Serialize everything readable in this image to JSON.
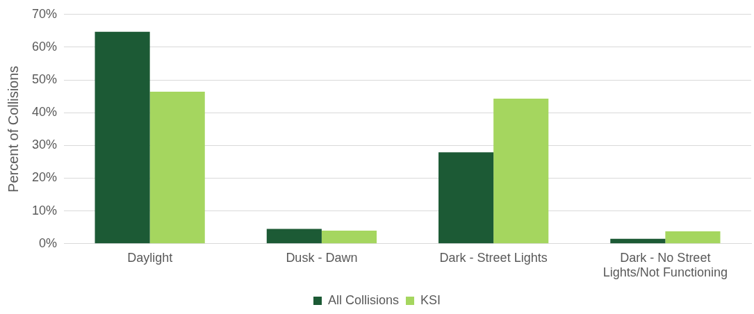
{
  "chart_data": {
    "type": "bar",
    "ylabel": "Percent of Collisions",
    "categories": [
      "Daylight",
      "Dusk - Dawn",
      "Dark - Street Lights",
      "Dark - No Street Lights/Not Functioning"
    ],
    "series": [
      {
        "name": "All Collisions",
        "color": "#1c5a35",
        "values": [
          64.7,
          4.5,
          27.9,
          1.5
        ]
      },
      {
        "name": "KSI",
        "color": "#a5d65f",
        "values": [
          46.4,
          4.0,
          44.3,
          3.8
        ]
      }
    ],
    "ylim": [
      0,
      70
    ],
    "yticks": [
      {
        "value": 0,
        "label": "0%"
      },
      {
        "value": 10,
        "label": "10%"
      },
      {
        "value": 20,
        "label": "20%"
      },
      {
        "value": 30,
        "label": "30%"
      },
      {
        "value": 40,
        "label": "40%"
      },
      {
        "value": 50,
        "label": "50%"
      },
      {
        "value": 60,
        "label": "60%"
      },
      {
        "value": 70,
        "label": "70%"
      }
    ],
    "grid": "y",
    "legend": "bottom"
  }
}
